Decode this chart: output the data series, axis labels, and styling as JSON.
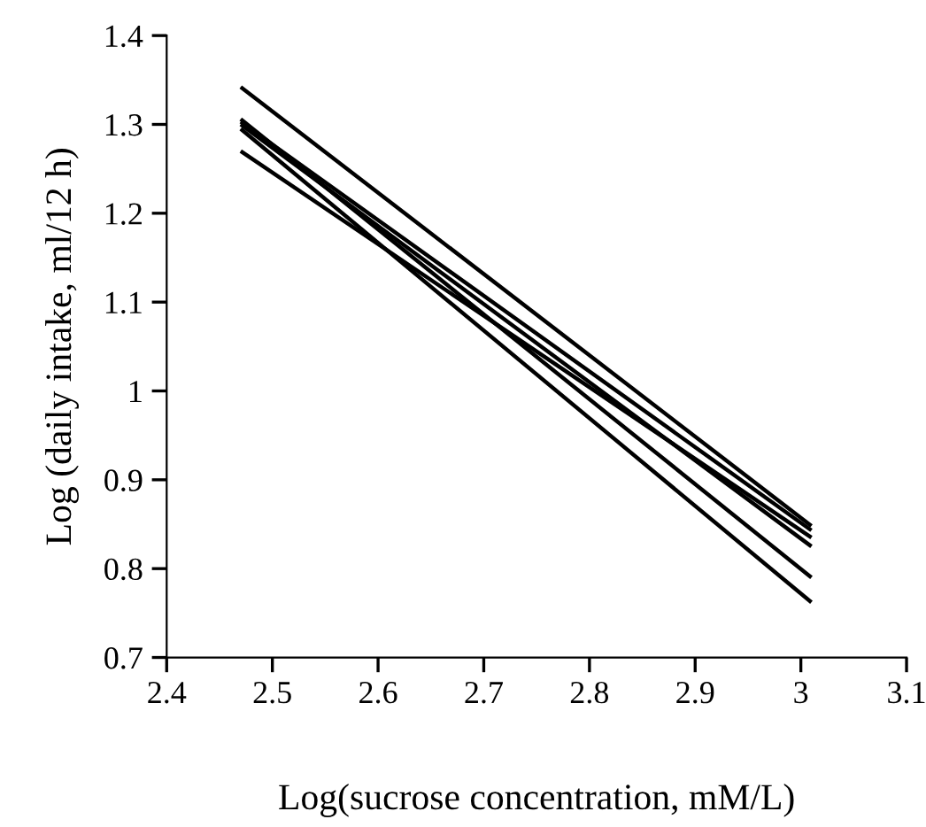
{
  "chart_data": {
    "type": "line",
    "xlabel": "Log(sucrose concentration, mM/L)",
    "ylabel": "Log (daily intake, ml/12 h)",
    "x": [
      2.47,
      3.01
    ],
    "series": [
      {
        "color": "#000000",
        "values": [
          1.342,
          0.848
        ]
      },
      {
        "color": "#000000",
        "values": [
          1.27,
          0.835
        ]
      },
      {
        "color": "#000000",
        "values": [
          1.295,
          0.762
        ]
      },
      {
        "color": "#000000",
        "values": [
          1.306,
          0.79
        ]
      },
      {
        "color": "#000000",
        "values": [
          1.303,
          0.843
        ]
      },
      {
        "color": "#000000",
        "values": [
          1.3,
          0.825
        ]
      }
    ],
    "xlim": [
      2.4,
      3.1
    ],
    "xticks": [
      2.4,
      2.5,
      2.6,
      2.7,
      2.8,
      2.9,
      3,
      3.1
    ],
    "ylim": [
      0.7,
      1.4
    ],
    "yticks": [
      0.7,
      0.8,
      0.9,
      1.1,
      1.2,
      1.3,
      1.4,
      1
    ],
    "grid": false,
    "legend": false,
    "marker": "none",
    "line_style": "solid"
  }
}
